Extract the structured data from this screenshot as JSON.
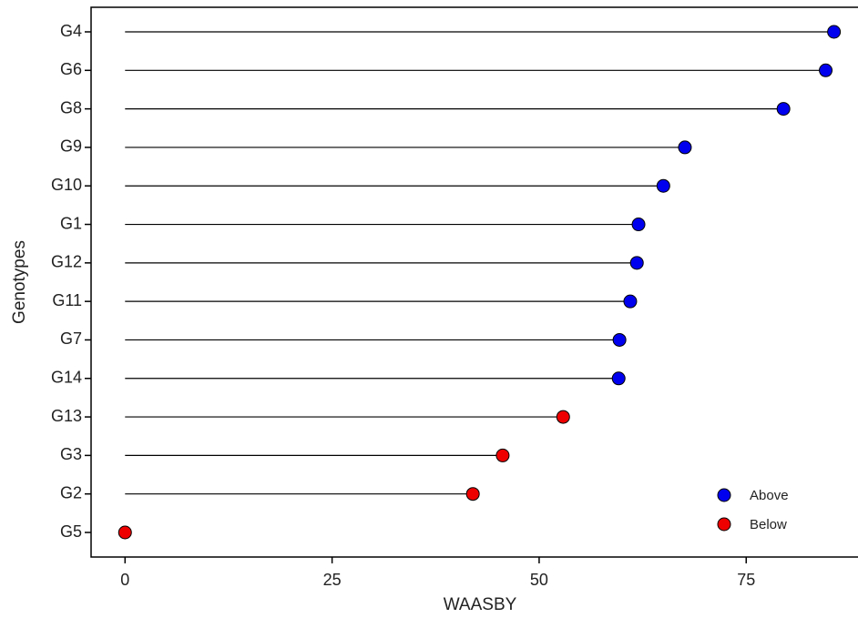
{
  "chart_data": {
    "type": "lollipop",
    "x_label": "WAASBY",
    "y_label": "Genotypes",
    "categories": [
      "G4",
      "G6",
      "G8",
      "G9",
      "G10",
      "G1",
      "G12",
      "G11",
      "G7",
      "G14",
      "G13",
      "G3",
      "G2",
      "G5"
    ],
    "series": [
      {
        "name": "Above",
        "color": "#0000ee",
        "values": [
          85.6,
          84.6,
          79.5,
          67.6,
          65.0,
          62.0,
          61.8,
          61.0,
          59.7,
          59.6,
          null,
          null,
          null,
          null
        ]
      },
      {
        "name": "Below",
        "color": "#ee0000",
        "values": [
          null,
          null,
          null,
          null,
          null,
          null,
          null,
          null,
          null,
          null,
          52.9,
          45.6,
          42.0,
          0
        ]
      }
    ],
    "xlim": [
      -4.1,
      88.5
    ],
    "xticks": [
      0,
      25,
      50,
      75
    ],
    "legend": "bottom-right"
  }
}
